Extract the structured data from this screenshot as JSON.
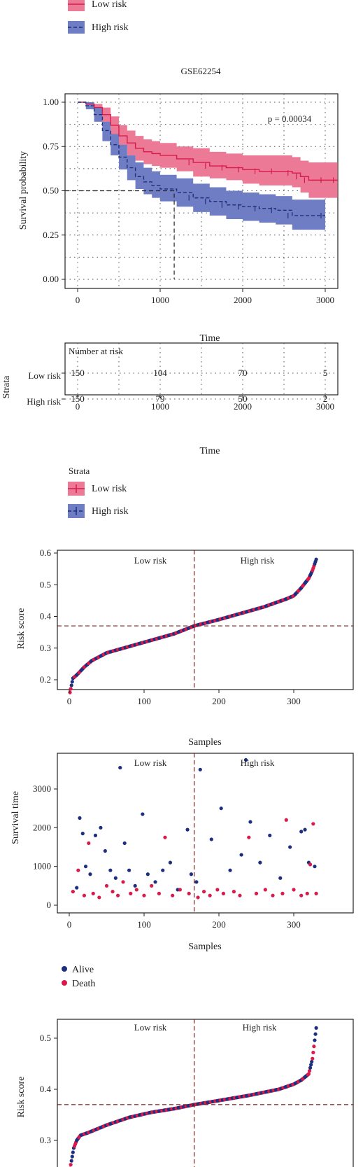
{
  "colors": {
    "low": "#d81b4a",
    "low_band": "#ec7a96",
    "high": "#1f2f80",
    "high_band": "#6f7ec4",
    "alive": "#1f2f80",
    "death": "#d81b4a"
  },
  "top_legend": {
    "items": [
      "Low risk",
      "High risk"
    ]
  },
  "km": {
    "title": "GSE62254",
    "pvalue": "p = 0.00034",
    "ylabel": "Survival probability",
    "xlabel": "Time",
    "xticks": [
      "0",
      "1000",
      "2000",
      "3000"
    ],
    "yticks": [
      "1.00",
      "0.75",
      "0.50",
      "0.25",
      "0.00"
    ]
  },
  "risk_table": {
    "title": "Number at risk",
    "ylabel": "Strata",
    "xlabel": "Time",
    "rows": [
      {
        "label": "Low risk",
        "values": [
          "150",
          "104",
          "70",
          "5"
        ]
      },
      {
        "label": "High risk",
        "values": [
          "150",
          "79",
          "50",
          "2"
        ]
      }
    ],
    "xticks": [
      "0",
      "1000",
      "2000",
      "3000"
    ]
  },
  "strata_legend": {
    "title": "Strata",
    "items": [
      "Low risk",
      "High risk"
    ]
  },
  "risk_plot1": {
    "ylabel": "Risk score",
    "xlabel": "Samples",
    "low_label": "Low risk",
    "high_label": "High risk",
    "xticks": [
      "0",
      "100",
      "200",
      "300"
    ],
    "yticks": [
      "0.6",
      "0.5",
      "0.4",
      "0.3",
      "0.2"
    ]
  },
  "surv_plot": {
    "ylabel": "Survival time",
    "xlabel": "Samples",
    "low_label": "Low risk",
    "high_label": "High risk",
    "xticks": [
      "0",
      "100",
      "200",
      "300"
    ],
    "yticks": [
      "3000",
      "2000",
      "1000",
      "0"
    ]
  },
  "status_legend": {
    "items": [
      "Alive",
      "Death"
    ]
  },
  "risk_plot2": {
    "ylabel": "Risk score",
    "low_label": "Low risk",
    "high_label": "High risk",
    "yticks": [
      "0.5",
      "0.4",
      "0.3"
    ]
  },
  "chart_data": [
    {
      "type": "line",
      "title": "GSE62254",
      "xlabel": "Time",
      "ylabel": "Survival probability",
      "xlim": [
        0,
        3150
      ],
      "ylim": [
        0,
        1
      ],
      "annotations": [
        "p = 0.00034"
      ],
      "series": [
        {
          "name": "Low risk",
          "x": [
            0,
            100,
            200,
            300,
            400,
            500,
            600,
            700,
            800,
            900,
            1000,
            1200,
            1400,
            1600,
            1800,
            2000,
            2200,
            2400,
            2600,
            2700,
            2800,
            3000,
            3150
          ],
          "y": [
            1.0,
            0.99,
            0.97,
            0.93,
            0.87,
            0.81,
            0.77,
            0.74,
            0.72,
            0.71,
            0.7,
            0.68,
            0.66,
            0.64,
            0.63,
            0.62,
            0.61,
            0.61,
            0.6,
            0.58,
            0.56,
            0.56,
            0.56
          ],
          "upper": [
            1.0,
            1.0,
            0.99,
            0.97,
            0.92,
            0.87,
            0.84,
            0.81,
            0.79,
            0.78,
            0.77,
            0.75,
            0.74,
            0.72,
            0.71,
            0.7,
            0.7,
            0.7,
            0.69,
            0.67,
            0.66,
            0.66,
            0.66
          ],
          "lower": [
            1.0,
            0.97,
            0.94,
            0.88,
            0.81,
            0.75,
            0.7,
            0.67,
            0.65,
            0.64,
            0.63,
            0.61,
            0.58,
            0.57,
            0.56,
            0.54,
            0.53,
            0.53,
            0.52,
            0.49,
            0.46,
            0.46,
            0.46
          ]
        },
        {
          "name": "High risk",
          "x": [
            0,
            100,
            200,
            300,
            400,
            500,
            600,
            700,
            800,
            900,
            1000,
            1200,
            1400,
            1600,
            1800,
            2000,
            2200,
            2400,
            2600,
            3000
          ],
          "y": [
            1.0,
            0.98,
            0.93,
            0.84,
            0.76,
            0.69,
            0.63,
            0.58,
            0.55,
            0.53,
            0.51,
            0.49,
            0.46,
            0.44,
            0.42,
            0.41,
            0.4,
            0.39,
            0.36,
            0.36
          ],
          "upper": [
            1.0,
            1.0,
            0.97,
            0.89,
            0.82,
            0.76,
            0.7,
            0.66,
            0.63,
            0.61,
            0.59,
            0.57,
            0.54,
            0.52,
            0.5,
            0.49,
            0.48,
            0.47,
            0.45,
            0.45
          ],
          "lower": [
            1.0,
            0.96,
            0.89,
            0.78,
            0.7,
            0.62,
            0.56,
            0.51,
            0.48,
            0.46,
            0.44,
            0.41,
            0.38,
            0.36,
            0.34,
            0.33,
            0.32,
            0.31,
            0.28,
            0.28
          ]
        }
      ],
      "median_survival": {
        "High risk": 1170
      }
    },
    {
      "type": "table",
      "title": "Number at risk",
      "columns": [
        "0",
        "1000",
        "2000",
        "3000"
      ],
      "rows": [
        {
          "name": "Low risk",
          "values": [
            150,
            104,
            70,
            5
          ]
        },
        {
          "name": "High risk",
          "values": [
            150,
            79,
            50,
            2
          ]
        }
      ]
    },
    {
      "type": "scatter",
      "xlabel": "Samples",
      "ylabel": "Risk score",
      "xlim": [
        0,
        340
      ],
      "ylim": [
        0.15,
        0.6
      ],
      "cutoff": {
        "x": 167,
        "y": 0.37
      },
      "curve_x": [
        1,
        5,
        10,
        20,
        30,
        50,
        80,
        110,
        140,
        167,
        200,
        230,
        260,
        290,
        300,
        310,
        320,
        325,
        330
      ],
      "curve_y": [
        0.16,
        0.205,
        0.215,
        0.24,
        0.26,
        0.285,
        0.305,
        0.325,
        0.345,
        0.37,
        0.39,
        0.41,
        0.43,
        0.455,
        0.465,
        0.49,
        0.52,
        0.545,
        0.58
      ]
    },
    {
      "type": "scatter",
      "xlabel": "Samples",
      "ylabel": "Survival time",
      "xlim": [
        0,
        340
      ],
      "ylim": [
        0,
        3800
      ],
      "series": [
        {
          "name": "Alive",
          "points": [
            [
              10,
              450
            ],
            [
              14,
              2250
            ],
            [
              18,
              1850
            ],
            [
              22,
              1000
            ],
            [
              28,
              800
            ],
            [
              35,
              1800
            ],
            [
              42,
              2000
            ],
            [
              48,
              1400
            ],
            [
              55,
              900
            ],
            [
              62,
              700
            ],
            [
              68,
              3550
            ],
            [
              74,
              1600
            ],
            [
              80,
              900
            ],
            [
              88,
              500
            ],
            [
              98,
              2350
            ],
            [
              105,
              800
            ],
            [
              115,
              600
            ],
            [
              125,
              900
            ],
            [
              135,
              1100
            ],
            [
              145,
              400
            ],
            [
              158,
              1950
            ],
            [
              163,
              800
            ],
            [
              170,
              600
            ],
            [
              175,
              3500
            ],
            [
              190,
              1700
            ],
            [
              203,
              2500
            ],
            [
              215,
              900
            ],
            [
              230,
              1300
            ],
            [
              236,
              3750
            ],
            [
              242,
              2150
            ],
            [
              255,
              1100
            ],
            [
              268,
              1800
            ],
            [
              282,
              700
            ],
            [
              295,
              1500
            ],
            [
              310,
              1900
            ],
            [
              315,
              1950
            ],
            [
              320,
              1100
            ],
            [
              328,
              1000
            ]
          ]
        },
        {
          "name": "Death",
          "points": [
            [
              5,
              350
            ],
            [
              12,
              900
            ],
            [
              20,
              250
            ],
            [
              26,
              1600
            ],
            [
              32,
              300
            ],
            [
              40,
              200
            ],
            [
              50,
              500
            ],
            [
              58,
              350
            ],
            [
              65,
              250
            ],
            [
              72,
              600
            ],
            [
              82,
              300
            ],
            [
              90,
              400
            ],
            [
              100,
              250
            ],
            [
              110,
              500
            ],
            [
              120,
              300
            ],
            [
              128,
              1750
            ],
            [
              138,
              250
            ],
            [
              148,
              400
            ],
            [
              160,
              300
            ],
            [
              172,
              200
            ],
            [
              180,
              350
            ],
            [
              188,
              250
            ],
            [
              198,
              400
            ],
            [
              206,
              300
            ],
            [
              220,
              350
            ],
            [
              228,
              250
            ],
            [
              240,
              1750
            ],
            [
              250,
              300
            ],
            [
              262,
              400
            ],
            [
              272,
              250
            ],
            [
              285,
              300
            ],
            [
              290,
              2200
            ],
            [
              300,
              400
            ],
            [
              310,
              250
            ],
            [
              318,
              300
            ],
            [
              322,
              1050
            ],
            [
              326,
              2100
            ],
            [
              330,
              300
            ]
          ]
        }
      ]
    },
    {
      "type": "scatter",
      "ylabel": "Risk score",
      "ylim": [
        0.23,
        0.54
      ],
      "cutoff": {
        "x": 167,
        "y": 0.37
      },
      "curve_x": [
        1,
        3,
        6,
        10,
        15,
        25,
        50,
        80,
        110,
        140,
        167,
        200,
        240,
        280,
        300,
        310,
        320,
        325,
        330
      ],
      "curve_y": [
        0.245,
        0.26,
        0.285,
        0.3,
        0.31,
        0.315,
        0.33,
        0.345,
        0.355,
        0.362,
        0.37,
        0.378,
        0.388,
        0.4,
        0.41,
        0.418,
        0.43,
        0.46,
        0.52
      ]
    }
  ]
}
